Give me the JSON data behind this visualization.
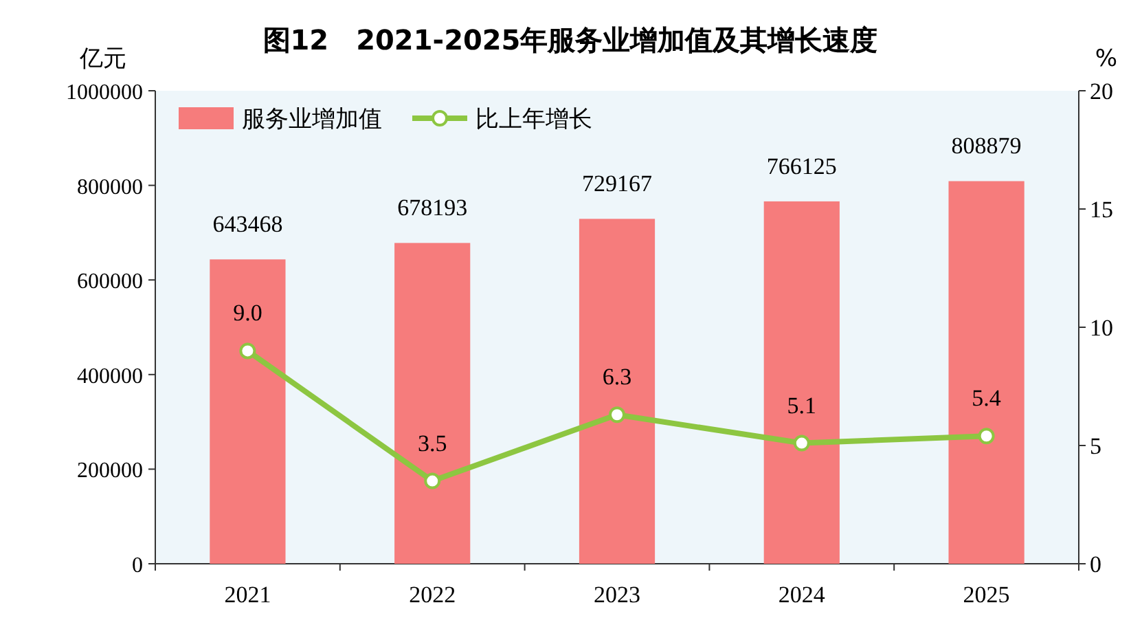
{
  "chart_data": {
    "type": "bar",
    "title": "图12　2021-2025年服务业增加值及其增长速度",
    "ylabel": "亿元",
    "y2label": "%",
    "categories": [
      "2021",
      "2022",
      "2023",
      "2024",
      "2025"
    ],
    "series": [
      {
        "name": "服务业增加值",
        "color": "#f67c7c",
        "values": [
          643468,
          678193,
          729167,
          766125,
          808879
        ],
        "value_labels": [
          "643468",
          "678193",
          "729167",
          "766125",
          "808879"
        ]
      },
      {
        "name": "比上年增长",
        "type": "line",
        "axis": "y2",
        "color": "#8dc641",
        "values": [
          9.0,
          3.5,
          6.3,
          5.1,
          5.4
        ],
        "value_labels": [
          "9.0",
          "3.5",
          "6.3",
          "5.1",
          "5.4"
        ],
        "marker": "circle",
        "line_style": "solid"
      }
    ],
    "ylim": [
      0,
      1000000
    ],
    "yticks": [
      0,
      200000,
      400000,
      600000,
      800000,
      1000000
    ],
    "y2lim": [
      0,
      20
    ],
    "y2ticks": [
      0,
      5,
      10,
      15,
      20
    ],
    "legend": "top left",
    "grid": false
  }
}
